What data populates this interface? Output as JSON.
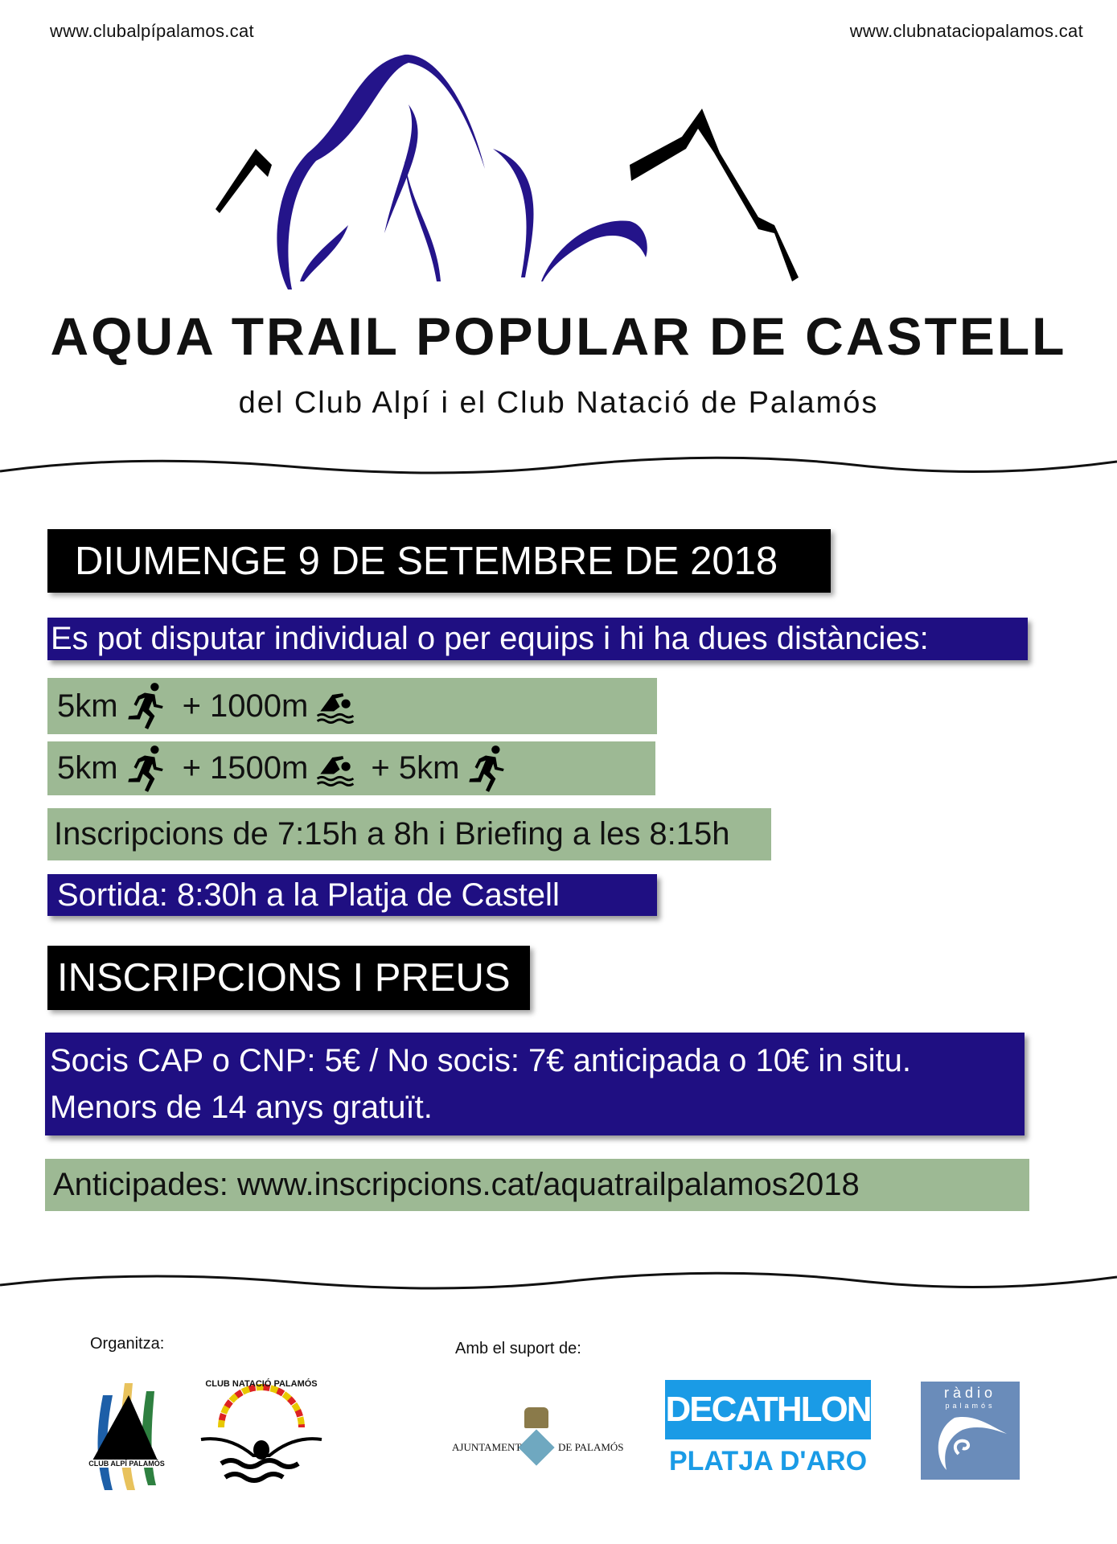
{
  "header": {
    "url_left": "www.clubalpípalamos.cat",
    "url_right": "www.clubnataciopalamos.cat"
  },
  "title": "AQUA TRAIL POPULAR DE CASTELL",
  "subtitle": "del Club Alpí i el Club Natació de Palamós",
  "date_banner": "DIUMENGE 9 DE SETEMBRE DE 2018",
  "intro": "Es pot disputar individual o per equips i hi ha dues distàncies:",
  "distances": [
    {
      "a": "5km",
      "b": "+ 1000m"
    },
    {
      "a": "5km",
      "b": "+ 1500m",
      "c": "+ 5km"
    }
  ],
  "schedule": "Inscripcions de 7:15h a 8h i Briefing  a les 8:15h",
  "start": "Sortida: 8:30h a la Platja de Castell",
  "prices_heading": "INSCRIPCIONS I PREUS",
  "prices": {
    "line1": "Socis CAP o CNP: 5€ / No socis: 7€ anticipada o 10€ in situ.",
    "line2": "Menors de 14 anys gratuït."
  },
  "advance": "Anticipades: www.inscripcions.cat/aquatrailpalamos2018",
  "footer": {
    "organizer_label": "Organitza:",
    "support_label": "Amb el suport de:",
    "logos": {
      "club_alpi": "CLUB ALPÍ PALAMÓS",
      "club_natacio": "CLUB NATACIÓ PALAMÓS",
      "ajuntament_left": "AJUNTAMENT",
      "ajuntament_right": "DE PALAMÓS",
      "decathlon": "DECATHLON",
      "decathlon_sub": "PLATJA D'ARO",
      "radio": "ràdio",
      "radio_sub": "palamós"
    }
  },
  "colors": {
    "purple": "#1f0f82",
    "green": "#9db994",
    "decathlon": "#1a9be6",
    "radio": "#6a8cba"
  }
}
